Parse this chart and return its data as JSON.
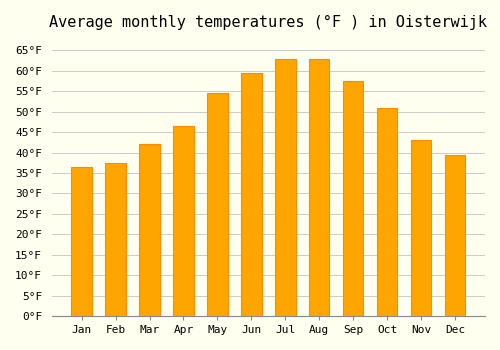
{
  "title": "Average monthly temperatures (°F ) in Oisterwijk",
  "months": [
    "Jan",
    "Feb",
    "Mar",
    "Apr",
    "May",
    "Jun",
    "Jul",
    "Aug",
    "Sep",
    "Oct",
    "Nov",
    "Dec"
  ],
  "values": [
    36.5,
    37.5,
    42.0,
    46.5,
    54.5,
    59.5,
    63.0,
    63.0,
    57.5,
    51.0,
    43.0,
    39.5
  ],
  "bar_color": "#FFA500",
  "bar_edge_color": "#FF8C00",
  "background_color": "#FFFFF0",
  "grid_color": "#CCCCCC",
  "ylim": [
    0,
    68
  ],
  "yticks": [
    0,
    5,
    10,
    15,
    20,
    25,
    30,
    35,
    40,
    45,
    50,
    55,
    60,
    65
  ],
  "title_fontsize": 11,
  "tick_fontsize": 8,
  "font_family": "monospace"
}
